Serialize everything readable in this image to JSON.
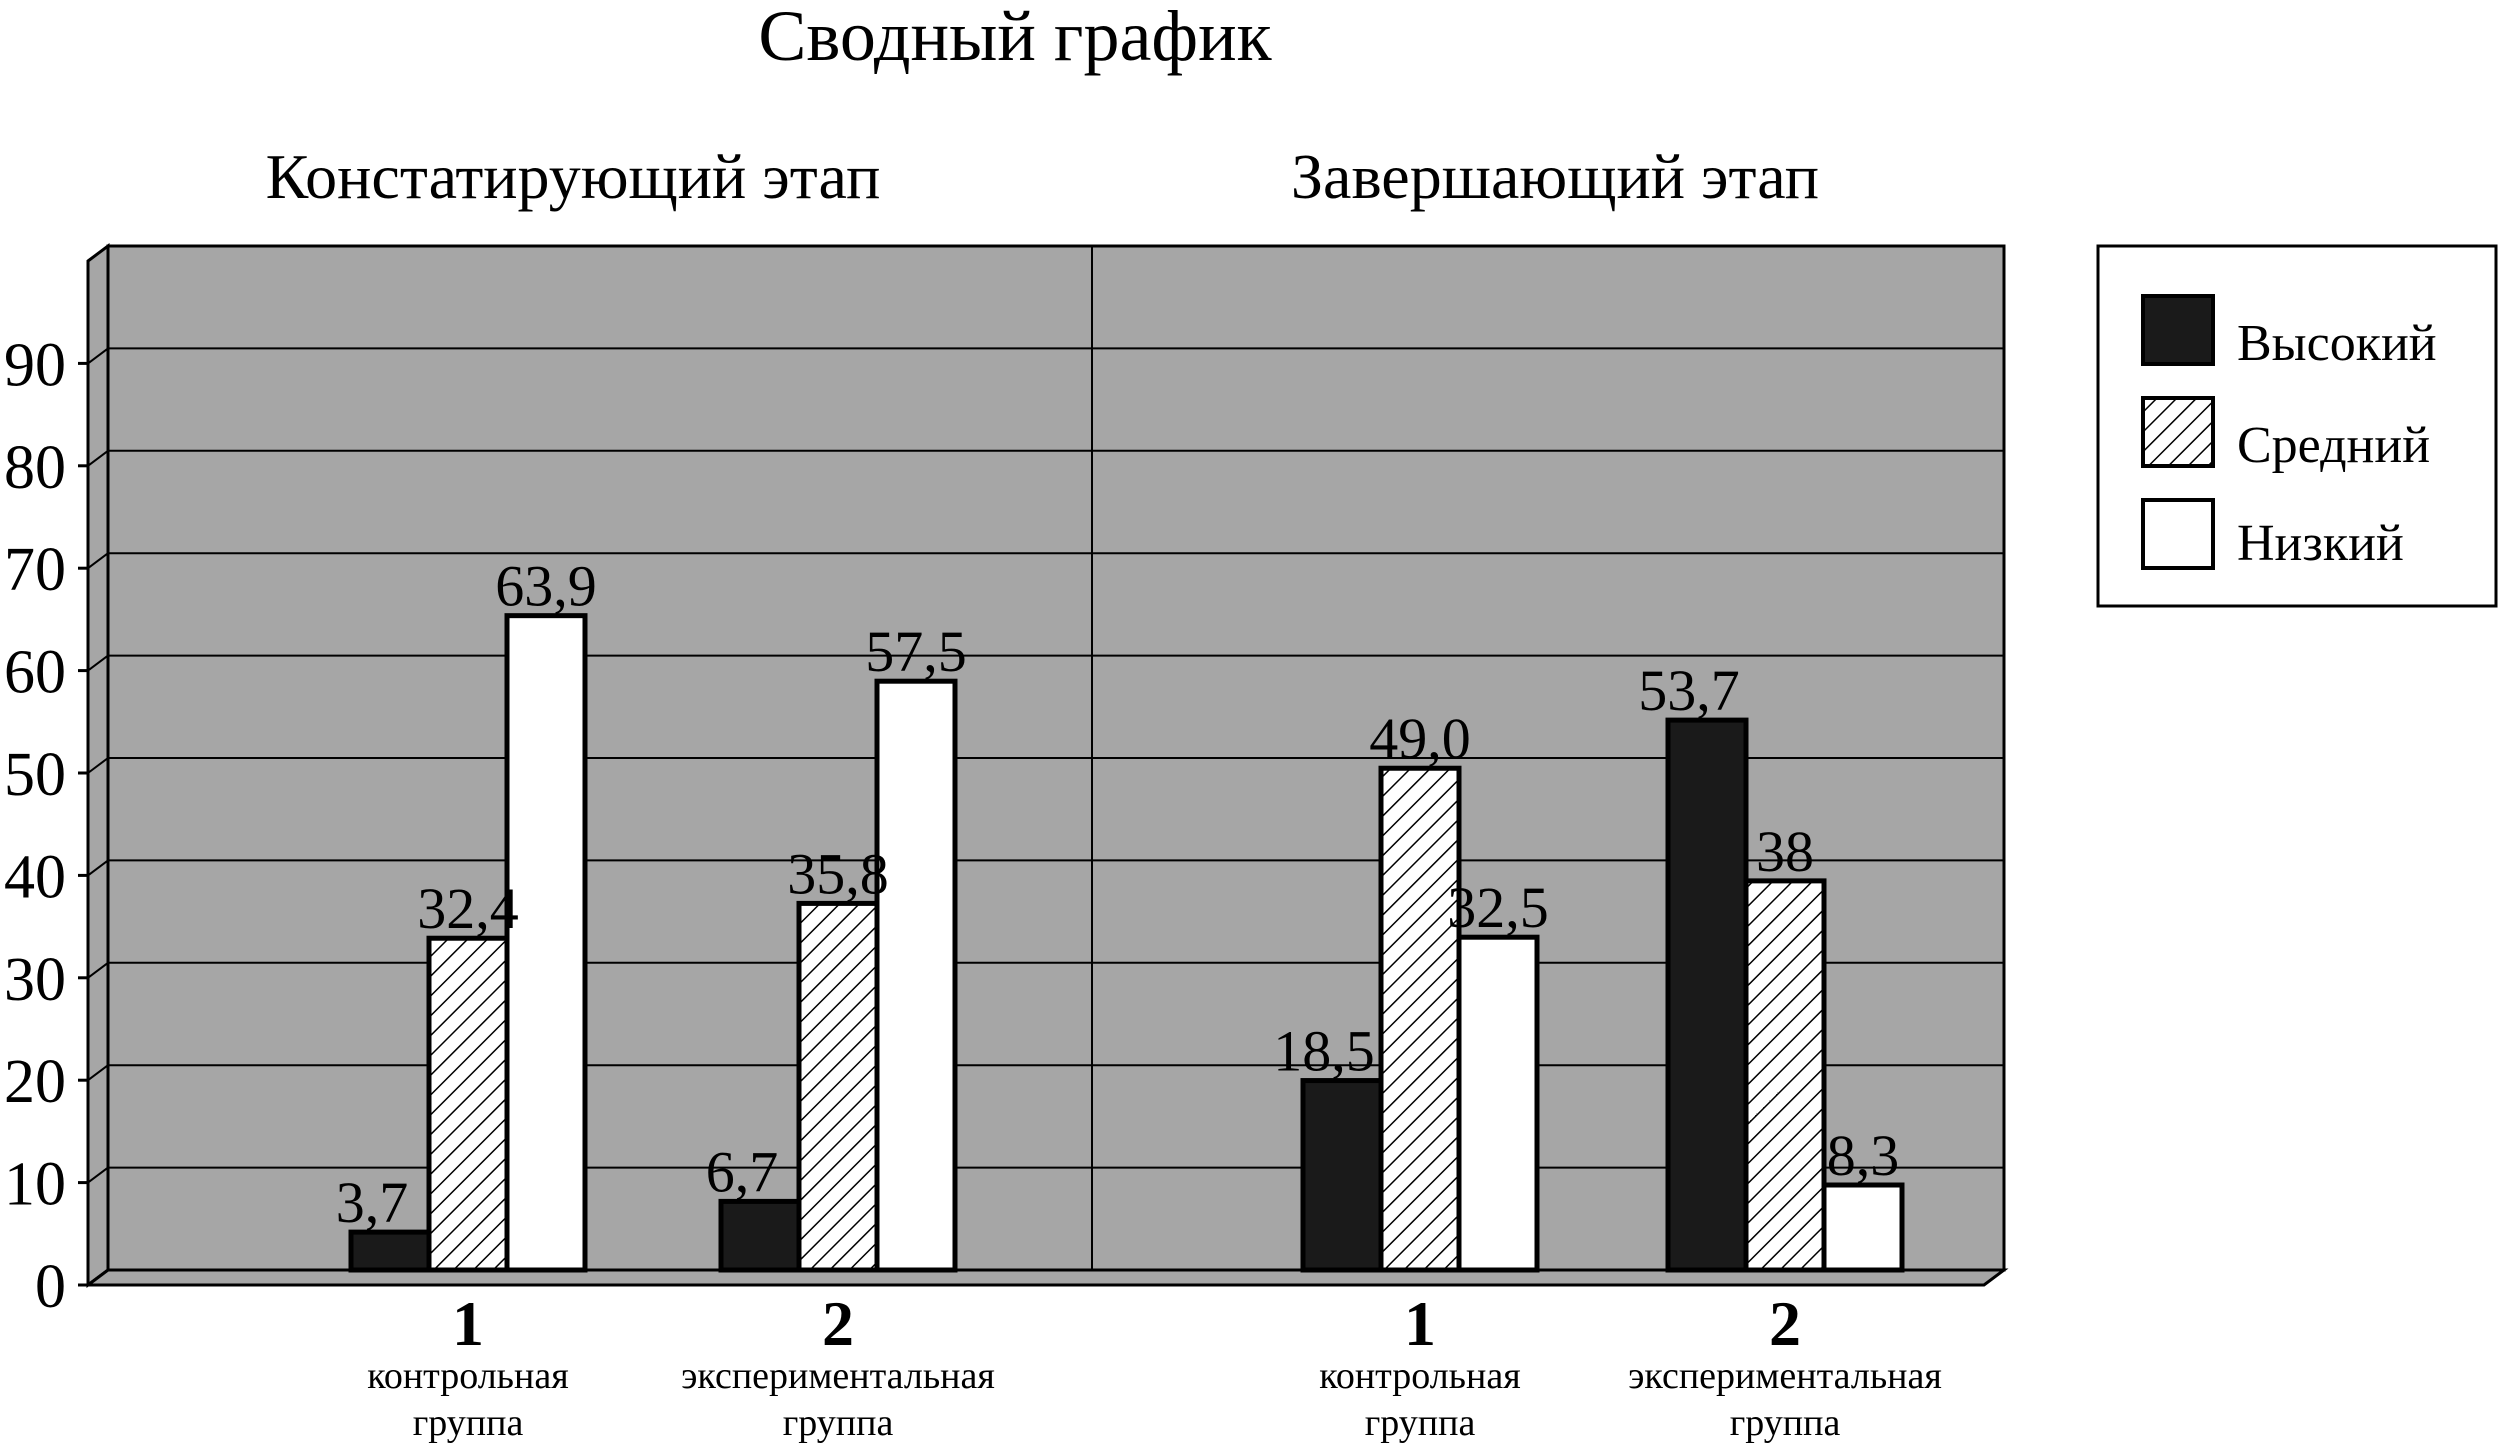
{
  "chart_data": {
    "type": "bar",
    "title": "Сводный график",
    "ylim": [
      0,
      100
    ],
    "y_ticks": [
      0,
      10,
      20,
      30,
      40,
      50,
      60,
      70,
      80,
      90
    ],
    "grid": true,
    "legend_position": "right",
    "series_names": [
      "Высокий",
      "Средний",
      "Низкий"
    ],
    "series_styles": [
      "solid-black",
      "hatched",
      "white"
    ],
    "panels": [
      {
        "title": "Констатирующий этап",
        "groups": [
          {
            "number": "1",
            "label_line1": "контрольная",
            "label_line2": "группа",
            "values": [
              3.7,
              32.4,
              63.9
            ],
            "labels": [
              "3,7",
              "32,4",
              "63,9"
            ]
          },
          {
            "number": "2",
            "label_line1": "экспериментальная",
            "label_line2": "группа",
            "values": [
              6.7,
              35.8,
              57.5
            ],
            "labels": [
              "6,7",
              "35,8",
              "57,5"
            ]
          }
        ]
      },
      {
        "title": "Завершающий этап",
        "groups": [
          {
            "number": "1",
            "label_line1": "контрольная",
            "label_line2": "группа",
            "values": [
              18.5,
              49.0,
              32.5
            ],
            "labels": [
              "18,5",
              "49,0",
              "32,5"
            ]
          },
          {
            "number": "2",
            "label_line1": "экспериментальная",
            "label_line2": "группа",
            "values": [
              53.7,
              38,
              8.3
            ],
            "labels": [
              "53,7",
              "38",
              "8,3"
            ]
          }
        ]
      }
    ],
    "colors": {
      "plot_background": "#a6a6a6",
      "high_fill": "#1a1a1a",
      "medium_fill": "#ffffff",
      "low_fill": "#ffffff",
      "grid": "#000000"
    }
  }
}
